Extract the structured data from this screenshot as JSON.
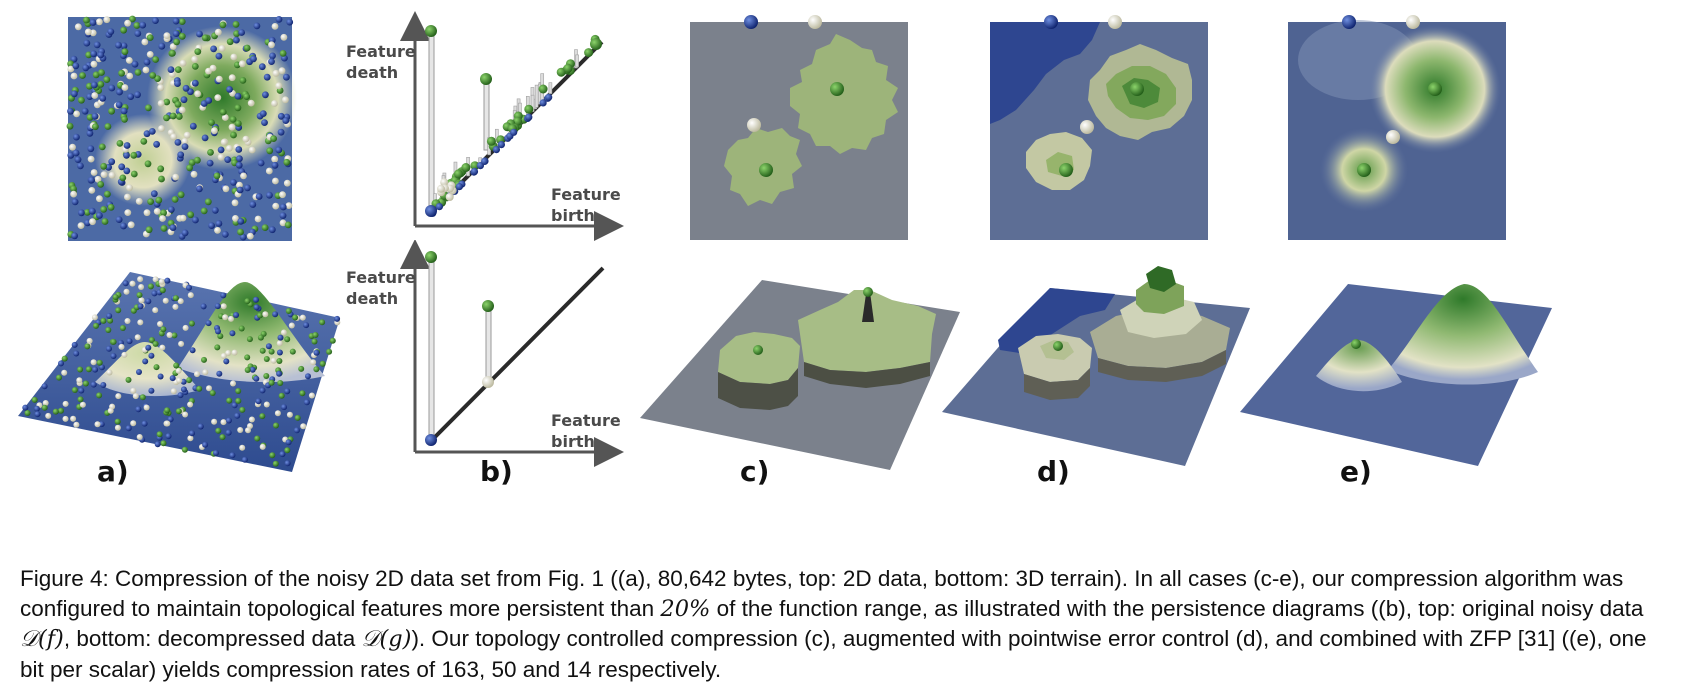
{
  "panels": {
    "a": {
      "label": "a)"
    },
    "b": {
      "label": "b)",
      "y_label_top": "Feature",
      "y_label_bottom": "death",
      "x_label_top": "Feature",
      "x_label_bottom": "birth"
    },
    "c": {
      "label": "c)"
    },
    "d": {
      "label": "d)"
    },
    "e": {
      "label": "e)"
    }
  },
  "caption": {
    "part1": "Figure 4: Compression of the noisy 2D data set from Fig. 1 ((a), 80,642 bytes, top: 2D data, bottom: 3D terrain). In all cases (c-e), our compression algorithm was configured to maintain topological features more persistent than ",
    "percent": "20%",
    "part2": " of the function range, as illustrated with the persistence diagrams ((b),  top: original noisy data ",
    "diag_f": "𝒟(f)",
    "part3": ", bottom: decompressed data ",
    "diag_g": "𝒟(g)",
    "part4": ").  Our topology controlled compression (c), augmented with pointwise error control (d), and combined with ZFP [31] ((e), one bit per scalar) yields compression rates of 163, 50 and 14 respectively."
  },
  "colors": {
    "navy": "#1f3a8a",
    "green": "#3d7a2a",
    "cream": "#e8e4c6",
    "slate": "#7a8290",
    "blue_slate": "#5b6d96"
  }
}
